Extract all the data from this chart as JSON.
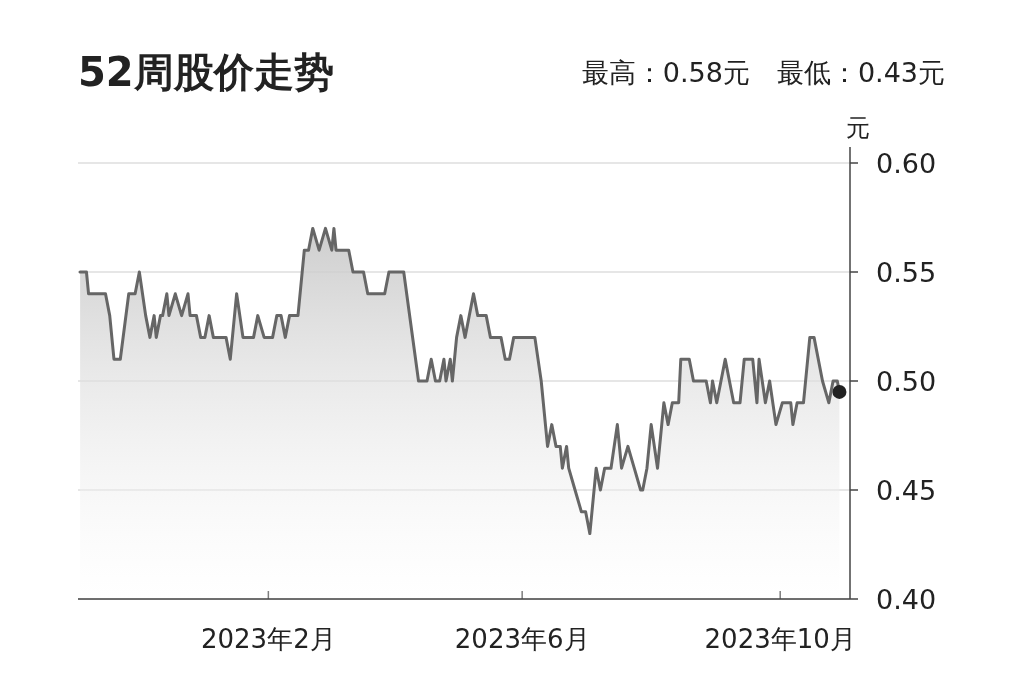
{
  "chart_data": {
    "type": "area",
    "title": "52周股价走势",
    "subtitle": "最高：0.58元　最低：0.43元",
    "ylabel": "元",
    "xlim": [
      "2022-11-03",
      "2023-11-03"
    ],
    "xticks": [
      {
        "value": "2023-02-01",
        "label": "2023年2月"
      },
      {
        "value": "2023-06-01",
        "label": "2023年6月"
      },
      {
        "value": "2023-10-01",
        "label": "2023年10月"
      }
    ],
    "ylim": [
      0.4,
      0.6
    ],
    "yticks": [
      {
        "value": 0.4,
        "label": "0.40"
      },
      {
        "value": 0.45,
        "label": "0.45"
      },
      {
        "value": 0.5,
        "label": "0.50"
      },
      {
        "value": 0.55,
        "label": "0.55"
      },
      {
        "value": 0.6,
        "label": "0.60"
      }
    ],
    "grid": "y",
    "series": [
      {
        "color": "#666666",
        "x": [
          "2022-11-04",
          "2022-11-07",
          "2022-11-08",
          "2022-11-16",
          "2022-11-18",
          "2022-11-20",
          "2022-11-23",
          "2022-11-27",
          "2022-11-30",
          "2022-12-02",
          "2022-12-05",
          "2022-12-07",
          "2022-12-09",
          "2022-12-10",
          "2022-12-12",
          "2022-12-13",
          "2022-12-15",
          "2022-12-16",
          "2022-12-19",
          "2022-12-22",
          "2022-12-25",
          "2022-12-26",
          "2022-12-29",
          "2022-12-31",
          "2023-01-02",
          "2023-01-04",
          "2023-01-06",
          "2023-01-12",
          "2023-01-14",
          "2023-01-17",
          "2023-01-20",
          "2023-01-25",
          "2023-01-27",
          "2023-01-30",
          "2023-02-03",
          "2023-02-05",
          "2023-02-07",
          "2023-02-09",
          "2023-02-11",
          "2023-02-15",
          "2023-02-18",
          "2023-02-20",
          "2023-02-22",
          "2023-02-25",
          "2023-02-28",
          "2023-03-03",
          "2023-03-04",
          "2023-03-05",
          "2023-03-11",
          "2023-03-13",
          "2023-03-18",
          "2023-03-20",
          "2023-03-28",
          "2023-03-30",
          "2023-04-06",
          "2023-04-13",
          "2023-04-17",
          "2023-04-19",
          "2023-04-21",
          "2023-04-23",
          "2023-04-25",
          "2023-04-26",
          "2023-04-28",
          "2023-04-29",
          "2023-05-01",
          "2023-05-03",
          "2023-05-05",
          "2023-05-09",
          "2023-05-11",
          "2023-05-15",
          "2023-05-17",
          "2023-05-22",
          "2023-05-24",
          "2023-05-26",
          "2023-05-28",
          "2023-06-07",
          "2023-06-10",
          "2023-06-13",
          "2023-06-15",
          "2023-06-17",
          "2023-06-19",
          "2023-06-20",
          "2023-06-22",
          "2023-06-23",
          "2023-06-26",
          "2023-06-29",
          "2023-07-01",
          "2023-07-03",
          "2023-07-06",
          "2023-07-08",
          "2023-07-10",
          "2023-07-13",
          "2023-07-16",
          "2023-07-18",
          "2023-07-21",
          "2023-07-24",
          "2023-07-27",
          "2023-07-28",
          "2023-07-30",
          "2023-08-01",
          "2023-08-04",
          "2023-08-07",
          "2023-08-09",
          "2023-08-11",
          "2023-08-14",
          "2023-08-15",
          "2023-08-19",
          "2023-08-21",
          "2023-08-27",
          "2023-08-29",
          "2023-08-30",
          "2023-09-01",
          "2023-09-05",
          "2023-09-09",
          "2023-09-12",
          "2023-09-14",
          "2023-09-18",
          "2023-09-20",
          "2023-09-21",
          "2023-09-24",
          "2023-09-26",
          "2023-09-29",
          "2023-10-02",
          "2023-10-06",
          "2023-10-07",
          "2023-10-09",
          "2023-10-12",
          "2023-10-15",
          "2023-10-17",
          "2023-10-21",
          "2023-10-24",
          "2023-10-26",
          "2023-10-28",
          "2023-10-29"
        ],
        "values": [
          0.55,
          0.55,
          0.54,
          0.54,
          0.53,
          0.51,
          0.51,
          0.54,
          0.54,
          0.55,
          0.53,
          0.52,
          0.53,
          0.52,
          0.53,
          0.53,
          0.54,
          0.53,
          0.54,
          0.53,
          0.54,
          0.53,
          0.53,
          0.52,
          0.52,
          0.53,
          0.52,
          0.52,
          0.51,
          0.54,
          0.52,
          0.52,
          0.53,
          0.52,
          0.52,
          0.53,
          0.53,
          0.52,
          0.53,
          0.53,
          0.56,
          0.56,
          0.57,
          0.56,
          0.57,
          0.56,
          0.57,
          0.56,
          0.56,
          0.55,
          0.55,
          0.54,
          0.54,
          0.55,
          0.55,
          0.5,
          0.5,
          0.51,
          0.5,
          0.5,
          0.51,
          0.5,
          0.51,
          0.5,
          0.52,
          0.53,
          0.52,
          0.54,
          0.53,
          0.53,
          0.52,
          0.52,
          0.51,
          0.51,
          0.52,
          0.52,
          0.5,
          0.47,
          0.48,
          0.47,
          0.47,
          0.46,
          0.47,
          0.46,
          0.45,
          0.44,
          0.44,
          0.43,
          0.46,
          0.45,
          0.46,
          0.46,
          0.48,
          0.46,
          0.47,
          0.46,
          0.45,
          0.45,
          0.46,
          0.48,
          0.46,
          0.49,
          0.48,
          0.49,
          0.49,
          0.51,
          0.51,
          0.5,
          0.5,
          0.49,
          0.5,
          0.49,
          0.51,
          0.49,
          0.49,
          0.51,
          0.51,
          0.49,
          0.51,
          0.49,
          0.5,
          0.48,
          0.49,
          0.49,
          0.48,
          0.49,
          0.49,
          0.52,
          0.52,
          0.5,
          0.49,
          0.5,
          0.5,
          0.495
        ]
      },
      {
        "type": "scatter",
        "color": "#222222",
        "marker": "circle",
        "x": [
          "2023-10-29"
        ],
        "values": [
          0.495
        ]
      }
    ]
  }
}
